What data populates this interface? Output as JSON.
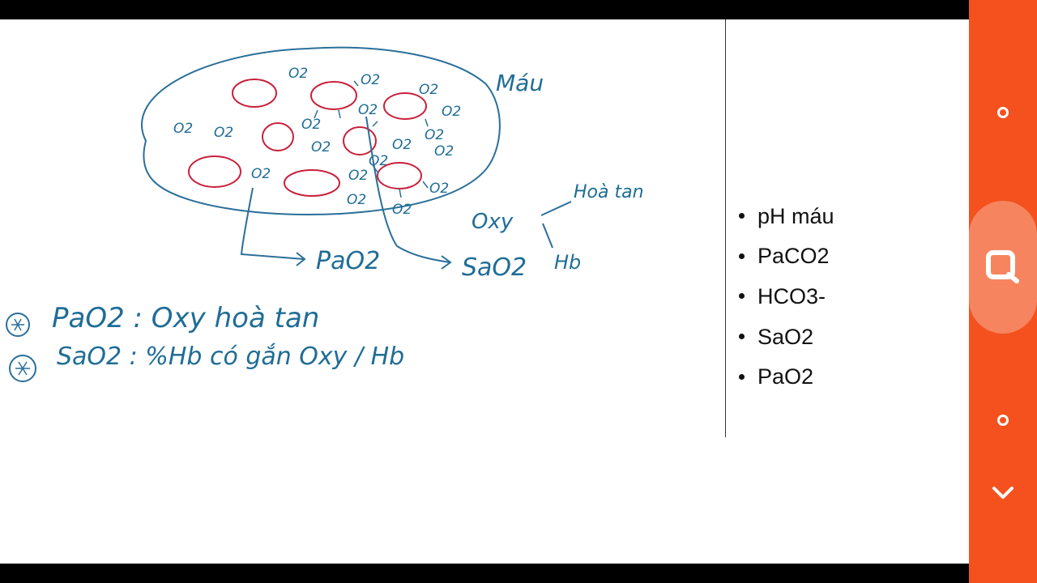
{
  "whiteboard": {
    "blood_label": "Máu",
    "oxygen_label": "Oxy",
    "dissolved_label": "Hoà tan",
    "hb_label": "Hb",
    "pao2_label": "PaO2",
    "sao2_label": "SaO2",
    "note_1": "PaO2 : Oxy hoà tan",
    "note_2": "SaO2 : %Hb có gắn Oxy / Hb",
    "o2": "O2"
  },
  "slide": {
    "bullets": [
      "pH máu",
      "PaCO2",
      "HCO3-",
      "SaO2",
      "PaO2"
    ]
  },
  "side_panel": {
    "buttons": [
      "record-dot",
      "annotate",
      "record-dot-2",
      "collapse"
    ]
  },
  "colors": {
    "ink_blue": "#1f6d96",
    "cell_red": "#c8203a",
    "panel_orange": "#f4511e"
  }
}
